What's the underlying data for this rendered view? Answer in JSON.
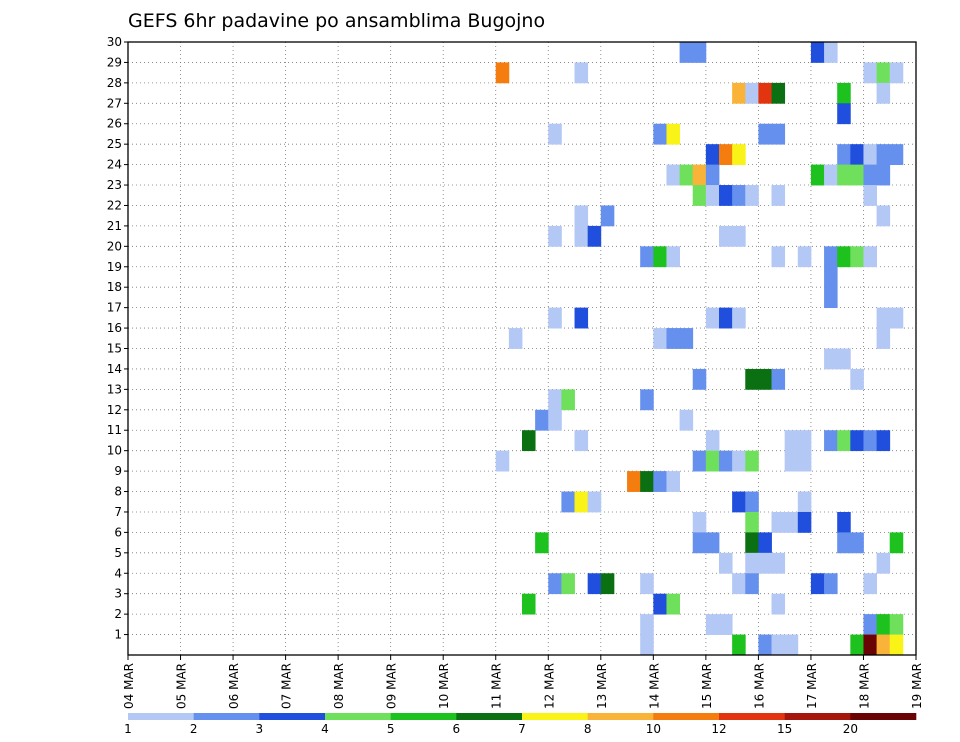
{
  "chart_data": {
    "type": "heatmap",
    "title": "GEFS 6hr padavine po ansamblima Bugojno",
    "xlabel": "",
    "ylabel": "",
    "x_tick_labels": [
      "04 MAR",
      "05 MAR",
      "06 MAR",
      "07 MAR",
      "08 MAR",
      "09 MAR",
      "10 MAR",
      "11 MAR",
      "12 MAR",
      "13 MAR",
      "14 MAR",
      "15 MAR",
      "16 MAR",
      "17 MAR",
      "18 MAR",
      "19 MAR"
    ],
    "y_tick_labels": [
      "1",
      "2",
      "3",
      "4",
      "5",
      "6",
      "7",
      "8",
      "9",
      "10",
      "11",
      "12",
      "13",
      "14",
      "15",
      "16",
      "17",
      "18",
      "19",
      "20",
      "21",
      "22",
      "23",
      "24",
      "25",
      "26",
      "27",
      "28",
      "29",
      "30"
    ],
    "xlim_days": [
      0,
      15
    ],
    "ylim": [
      0,
      30
    ],
    "time_step_hours": 6,
    "grid": true,
    "colorbar": {
      "placement": "bottom",
      "labels": [
        "1",
        "2",
        "3",
        "4",
        "5",
        "6",
        "7",
        "8",
        "10",
        "12",
        "15",
        "20"
      ],
      "colors": [
        "#b3c8f5",
        "#6690ee",
        "#1f4fdc",
        "#6fe05c",
        "#1ec21e",
        "#0a7012",
        "#f9f317",
        "#f9b338",
        "#f57c0e",
        "#e2340f",
        "#a5150b",
        "#6a0404"
      ]
    },
    "cells": [
      {
        "member": 29,
        "step": 42,
        "color": "#6690ee"
      },
      {
        "member": 29,
        "step": 43,
        "color": "#6690ee"
      },
      {
        "member": 29,
        "step": 52,
        "color": "#1f4fdc"
      },
      {
        "member": 29,
        "step": 53,
        "color": "#b3c8f5"
      },
      {
        "member": 28,
        "step": 28,
        "color": "#f57c0e"
      },
      {
        "member": 28,
        "step": 34,
        "color": "#b3c8f5"
      },
      {
        "member": 28,
        "step": 56,
        "color": "#b3c8f5"
      },
      {
        "member": 28,
        "step": 57,
        "color": "#6fe05c"
      },
      {
        "member": 28,
        "step": 58,
        "color": "#b3c8f5"
      },
      {
        "member": 27,
        "step": 46,
        "color": "#f9b338"
      },
      {
        "member": 27,
        "step": 47,
        "color": "#b3c8f5"
      },
      {
        "member": 27,
        "step": 48,
        "color": "#e2340f"
      },
      {
        "member": 27,
        "step": 49,
        "color": "#0a7012"
      },
      {
        "member": 27,
        "step": 54,
        "color": "#1ec21e"
      },
      {
        "member": 27,
        "step": 57,
        "color": "#b3c8f5"
      },
      {
        "member": 26,
        "step": 54,
        "color": "#1f4fdc"
      },
      {
        "member": 25,
        "step": 32,
        "color": "#b3c8f5"
      },
      {
        "member": 25,
        "step": 40,
        "color": "#6690ee"
      },
      {
        "member": 25,
        "step": 41,
        "color": "#f9f317"
      },
      {
        "member": 25,
        "step": 48,
        "color": "#6690ee"
      },
      {
        "member": 25,
        "step": 49,
        "color": "#6690ee"
      },
      {
        "member": 24,
        "step": 44,
        "color": "#1f4fdc"
      },
      {
        "member": 24,
        "step": 45,
        "color": "#f57c0e"
      },
      {
        "member": 24,
        "step": 46,
        "color": "#f9f317"
      },
      {
        "member": 24,
        "step": 54,
        "color": "#6690ee"
      },
      {
        "member": 24,
        "step": 55,
        "color": "#1f4fdc"
      },
      {
        "member": 24,
        "step": 56,
        "color": "#b3c8f5"
      },
      {
        "member": 24,
        "step": 57,
        "color": "#6690ee"
      },
      {
        "member": 24,
        "step": 58,
        "color": "#6690ee"
      },
      {
        "member": 23,
        "step": 41,
        "color": "#b3c8f5"
      },
      {
        "member": 23,
        "step": 42,
        "color": "#6fe05c"
      },
      {
        "member": 23,
        "step": 43,
        "color": "#f9b338"
      },
      {
        "member": 23,
        "step": 44,
        "color": "#6690ee"
      },
      {
        "member": 23,
        "step": 52,
        "color": "#1ec21e"
      },
      {
        "member": 23,
        "step": 53,
        "color": "#b3c8f5"
      },
      {
        "member": 23,
        "step": 54,
        "color": "#6fe05c"
      },
      {
        "member": 23,
        "step": 55,
        "color": "#6fe05c"
      },
      {
        "member": 23,
        "step": 56,
        "color": "#6690ee"
      },
      {
        "member": 23,
        "step": 57,
        "color": "#6690ee"
      },
      {
        "member": 22,
        "step": 43,
        "color": "#6fe05c"
      },
      {
        "member": 22,
        "step": 44,
        "color": "#b3c8f5"
      },
      {
        "member": 22,
        "step": 45,
        "color": "#1f4fdc"
      },
      {
        "member": 22,
        "step": 46,
        "color": "#6690ee"
      },
      {
        "member": 22,
        "step": 47,
        "color": "#b3c8f5"
      },
      {
        "member": 22,
        "step": 49,
        "color": "#b3c8f5"
      },
      {
        "member": 22,
        "step": 56,
        "color": "#b3c8f5"
      },
      {
        "member": 21,
        "step": 34,
        "color": "#b3c8f5"
      },
      {
        "member": 21,
        "step": 36,
        "color": "#6690ee"
      },
      {
        "member": 21,
        "step": 57,
        "color": "#b3c8f5"
      },
      {
        "member": 20,
        "step": 32,
        "color": "#b3c8f5"
      },
      {
        "member": 20,
        "step": 34,
        "color": "#b3c8f5"
      },
      {
        "member": 20,
        "step": 35,
        "color": "#1f4fdc"
      },
      {
        "member": 20,
        "step": 45,
        "color": "#b3c8f5"
      },
      {
        "member": 20,
        "step": 46,
        "color": "#b3c8f5"
      },
      {
        "member": 19,
        "step": 39,
        "color": "#6690ee"
      },
      {
        "member": 19,
        "step": 40,
        "color": "#1ec21e"
      },
      {
        "member": 19,
        "step": 41,
        "color": "#b3c8f5"
      },
      {
        "member": 19,
        "step": 49,
        "color": "#b3c8f5"
      },
      {
        "member": 19,
        "step": 51,
        "color": "#b3c8f5"
      },
      {
        "member": 19,
        "step": 53,
        "color": "#6690ee"
      },
      {
        "member": 19,
        "step": 54,
        "color": "#1ec21e"
      },
      {
        "member": 19,
        "step": 55,
        "color": "#6fe05c"
      },
      {
        "member": 19,
        "step": 56,
        "color": "#b3c8f5"
      },
      {
        "member": 18,
        "step": 53,
        "color": "#6690ee"
      },
      {
        "member": 17,
        "step": 53,
        "color": "#6690ee"
      },
      {
        "member": 16,
        "step": 32,
        "color": "#b3c8f5"
      },
      {
        "member": 16,
        "step": 34,
        "color": "#1f4fdc"
      },
      {
        "member": 16,
        "step": 44,
        "color": "#b3c8f5"
      },
      {
        "member": 16,
        "step": 45,
        "color": "#1f4fdc"
      },
      {
        "member": 16,
        "step": 46,
        "color": "#b3c8f5"
      },
      {
        "member": 16,
        "step": 57,
        "color": "#b3c8f5"
      },
      {
        "member": 16,
        "step": 58,
        "color": "#b3c8f5"
      },
      {
        "member": 15,
        "step": 29,
        "color": "#b3c8f5"
      },
      {
        "member": 15,
        "step": 40,
        "color": "#b3c8f5"
      },
      {
        "member": 15,
        "step": 41,
        "color": "#6690ee"
      },
      {
        "member": 15,
        "step": 42,
        "color": "#6690ee"
      },
      {
        "member": 15,
        "step": 57,
        "color": "#b3c8f5"
      },
      {
        "member": 14,
        "step": 53,
        "color": "#b3c8f5"
      },
      {
        "member": 14,
        "step": 54,
        "color": "#b3c8f5"
      },
      {
        "member": 13,
        "step": 43,
        "color": "#6690ee"
      },
      {
        "member": 13,
        "step": 47,
        "color": "#0a7012"
      },
      {
        "member": 13,
        "step": 48,
        "color": "#0a7012"
      },
      {
        "member": 13,
        "step": 49,
        "color": "#6690ee"
      },
      {
        "member": 13,
        "step": 55,
        "color": "#b3c8f5"
      },
      {
        "member": 12,
        "step": 32,
        "color": "#b3c8f5"
      },
      {
        "member": 12,
        "step": 33,
        "color": "#6fe05c"
      },
      {
        "member": 12,
        "step": 39,
        "color": "#6690ee"
      },
      {
        "member": 11,
        "step": 31,
        "color": "#6690ee"
      },
      {
        "member": 11,
        "step": 32,
        "color": "#b3c8f5"
      },
      {
        "member": 11,
        "step": 42,
        "color": "#b3c8f5"
      },
      {
        "member": 10,
        "step": 30,
        "color": "#0a7012"
      },
      {
        "member": 10,
        "step": 34,
        "color": "#b3c8f5"
      },
      {
        "member": 10,
        "step": 44,
        "color": "#b3c8f5"
      },
      {
        "member": 10,
        "step": 50,
        "color": "#b3c8f5"
      },
      {
        "member": 10,
        "step": 51,
        "color": "#b3c8f5"
      },
      {
        "member": 10,
        "step": 53,
        "color": "#6690ee"
      },
      {
        "member": 10,
        "step": 54,
        "color": "#6fe05c"
      },
      {
        "member": 10,
        "step": 55,
        "color": "#1f4fdc"
      },
      {
        "member": 10,
        "step": 56,
        "color": "#6690ee"
      },
      {
        "member": 10,
        "step": 57,
        "color": "#1f4fdc"
      },
      {
        "member": 9,
        "step": 28,
        "color": "#b3c8f5"
      },
      {
        "member": 9,
        "step": 43,
        "color": "#6690ee"
      },
      {
        "member": 9,
        "step": 44,
        "color": "#6fe05c"
      },
      {
        "member": 9,
        "step": 45,
        "color": "#6690ee"
      },
      {
        "member": 9,
        "step": 46,
        "color": "#b3c8f5"
      },
      {
        "member": 9,
        "step": 47,
        "color": "#6fe05c"
      },
      {
        "member": 9,
        "step": 50,
        "color": "#b3c8f5"
      },
      {
        "member": 9,
        "step": 51,
        "color": "#b3c8f5"
      },
      {
        "member": 8,
        "step": 38,
        "color": "#f57c0e"
      },
      {
        "member": 8,
        "step": 39,
        "color": "#0a7012"
      },
      {
        "member": 8,
        "step": 40,
        "color": "#6690ee"
      },
      {
        "member": 8,
        "step": 41,
        "color": "#b3c8f5"
      },
      {
        "member": 7,
        "step": 33,
        "color": "#6690ee"
      },
      {
        "member": 7,
        "step": 34,
        "color": "#f9f317"
      },
      {
        "member": 7,
        "step": 35,
        "color": "#b3c8f5"
      },
      {
        "member": 7,
        "step": 46,
        "color": "#1f4fdc"
      },
      {
        "member": 7,
        "step": 47,
        "color": "#6690ee"
      },
      {
        "member": 7,
        "step": 51,
        "color": "#b3c8f5"
      },
      {
        "member": 6,
        "step": 43,
        "color": "#b3c8f5"
      },
      {
        "member": 6,
        "step": 47,
        "color": "#6fe05c"
      },
      {
        "member": 6,
        "step": 49,
        "color": "#b3c8f5"
      },
      {
        "member": 6,
        "step": 50,
        "color": "#b3c8f5"
      },
      {
        "member": 6,
        "step": 51,
        "color": "#1f4fdc"
      },
      {
        "member": 6,
        "step": 54,
        "color": "#1f4fdc"
      },
      {
        "member": 5,
        "step": 31,
        "color": "#1ec21e"
      },
      {
        "member": 5,
        "step": 43,
        "color": "#6690ee"
      },
      {
        "member": 5,
        "step": 44,
        "color": "#6690ee"
      },
      {
        "member": 5,
        "step": 47,
        "color": "#0a7012"
      },
      {
        "member": 5,
        "step": 48,
        "color": "#1f4fdc"
      },
      {
        "member": 5,
        "step": 54,
        "color": "#6690ee"
      },
      {
        "member": 5,
        "step": 55,
        "color": "#6690ee"
      },
      {
        "member": 5,
        "step": 58,
        "color": "#1ec21e"
      },
      {
        "member": 4,
        "step": 45,
        "color": "#b3c8f5"
      },
      {
        "member": 4,
        "step": 47,
        "color": "#b3c8f5"
      },
      {
        "member": 4,
        "step": 48,
        "color": "#b3c8f5"
      },
      {
        "member": 4,
        "step": 49,
        "color": "#b3c8f5"
      },
      {
        "member": 4,
        "step": 57,
        "color": "#b3c8f5"
      },
      {
        "member": 3,
        "step": 32,
        "color": "#6690ee"
      },
      {
        "member": 3,
        "step": 33,
        "color": "#6fe05c"
      },
      {
        "member": 3,
        "step": 35,
        "color": "#1f4fdc"
      },
      {
        "member": 3,
        "step": 36,
        "color": "#0a7012"
      },
      {
        "member": 3,
        "step": 39,
        "color": "#b3c8f5"
      },
      {
        "member": 3,
        "step": 46,
        "color": "#b3c8f5"
      },
      {
        "member": 3,
        "step": 47,
        "color": "#6690ee"
      },
      {
        "member": 3,
        "step": 52,
        "color": "#1f4fdc"
      },
      {
        "member": 3,
        "step": 53,
        "color": "#6690ee"
      },
      {
        "member": 3,
        "step": 56,
        "color": "#b3c8f5"
      },
      {
        "member": 2,
        "step": 30,
        "color": "#1ec21e"
      },
      {
        "member": 2,
        "step": 40,
        "color": "#1f4fdc"
      },
      {
        "member": 2,
        "step": 41,
        "color": "#6fe05c"
      },
      {
        "member": 2,
        "step": 49,
        "color": "#b3c8f5"
      },
      {
        "member": 1,
        "step": 39,
        "color": "#b3c8f5"
      },
      {
        "member": 1,
        "step": 44,
        "color": "#b3c8f5"
      },
      {
        "member": 1,
        "step": 45,
        "color": "#b3c8f5"
      },
      {
        "member": 1,
        "step": 56,
        "color": "#6690ee"
      },
      {
        "member": 1,
        "step": 57,
        "color": "#1ec21e"
      },
      {
        "member": 1,
        "step": 58,
        "color": "#6fe05c"
      },
      {
        "member": 0,
        "step": 39,
        "color": "#b3c8f5"
      },
      {
        "member": 0,
        "step": 46,
        "color": "#1ec21e"
      },
      {
        "member": 0,
        "step": 48,
        "color": "#6690ee"
      },
      {
        "member": 0,
        "step": 49,
        "color": "#b3c8f5"
      },
      {
        "member": 0,
        "step": 50,
        "color": "#b3c8f5"
      },
      {
        "member": 0,
        "step": 55,
        "color": "#1ec21e"
      },
      {
        "member": 0,
        "step": 56,
        "color": "#6a0404"
      },
      {
        "member": 0,
        "step": 57,
        "color": "#f9b338"
      },
      {
        "member": 0,
        "step": 58,
        "color": "#f9f317"
      }
    ]
  }
}
